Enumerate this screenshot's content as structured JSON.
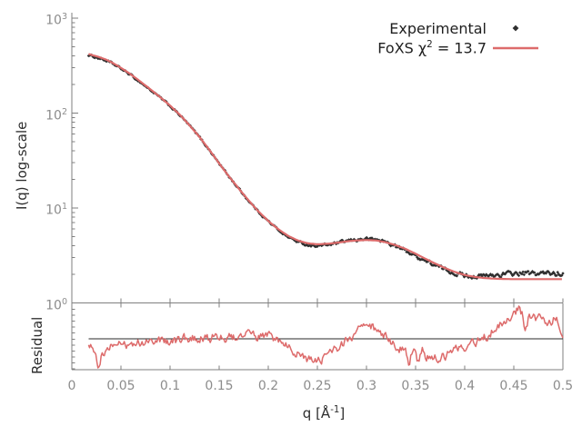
{
  "legend": {
    "experimental_label": "Experimental",
    "fit_label_prefix": "FoXS χ",
    "fit_label_sup": "2",
    "fit_label_suffix": " = 13.7"
  },
  "axes": {
    "y_main_label": "I(q) log-scale",
    "y_res_label": "Residual",
    "x_label_prefix": "q [Å",
    "x_label_sup": "-1",
    "x_label_suffix": "]"
  },
  "colors": {
    "background": "#ffffff",
    "fit_line": "#dd6b6b",
    "experimental": "#2f2f2f",
    "axis": "#7f7f7f",
    "tick_label": "#8c8c8c",
    "label_text": "#2e2e2e",
    "reference_line": "#2a2a2a"
  },
  "chart_data": {
    "type": "line",
    "title": "",
    "x": {
      "label": "q [Å^-1]",
      "min": 0,
      "max": 0.5,
      "tick_step": 0.05,
      "data_min": 0.017
    },
    "y_main": {
      "label": "I(q) log-scale",
      "scale": "log10",
      "min": 1,
      "max": 1000
    },
    "y_residual": {
      "label": "Residual",
      "scale": "log10",
      "reference_value": 1
    },
    "legend_position": "top-right",
    "grid": false,
    "series": [
      {
        "name": "Experimental",
        "style": "points",
        "marker": "diamond",
        "color": "#2f2f2f"
      },
      {
        "name": "FoXS χ2 = 13.7",
        "style": "line",
        "color": "#dd6b6b",
        "chi2": 13.7
      }
    ],
    "x_ticks": [
      {
        "value": 0,
        "label": "0"
      },
      {
        "value": 0.05,
        "label": "0.05"
      },
      {
        "value": 0.1,
        "label": "0.1"
      },
      {
        "value": 0.15,
        "label": "0.15"
      },
      {
        "value": 0.2,
        "label": "0.2"
      },
      {
        "value": 0.25,
        "label": "0.25"
      },
      {
        "value": 0.3,
        "label": "0.3"
      },
      {
        "value": 0.35,
        "label": "0.35"
      },
      {
        "value": 0.4,
        "label": "0.4"
      },
      {
        "value": 0.45,
        "label": "0.45"
      },
      {
        "value": 0.5,
        "label": "0.5"
      }
    ],
    "y_ticks": [
      {
        "base": "10",
        "exponent": 0,
        "label": "10^0"
      },
      {
        "base": "10",
        "exponent": 1,
        "label": "10^1"
      },
      {
        "base": "10",
        "exponent": 2,
        "label": "10^2"
      },
      {
        "base": "10",
        "exponent": 3,
        "label": "10^3"
      }
    ],
    "fit_curve_points": [
      [
        0.017,
        420
      ],
      [
        0.02,
        410
      ],
      [
        0.025,
        397
      ],
      [
        0.03,
        382
      ],
      [
        0.035,
        365
      ],
      [
        0.04,
        345
      ],
      [
        0.045,
        322
      ],
      [
        0.05,
        300
      ],
      [
        0.06,
        256
      ],
      [
        0.07,
        214
      ],
      [
        0.08,
        178
      ],
      [
        0.09,
        147
      ],
      [
        0.1,
        120
      ],
      [
        0.11,
        96
      ],
      [
        0.12,
        74
      ],
      [
        0.13,
        56
      ],
      [
        0.14,
        41
      ],
      [
        0.15,
        29.5
      ],
      [
        0.16,
        21.5
      ],
      [
        0.17,
        16
      ],
      [
        0.18,
        12
      ],
      [
        0.19,
        9.2
      ],
      [
        0.2,
        7.3
      ],
      [
        0.21,
        6
      ],
      [
        0.22,
        5.1
      ],
      [
        0.23,
        4.55
      ],
      [
        0.24,
        4.25
      ],
      [
        0.25,
        4.15
      ],
      [
        0.26,
        4.2
      ],
      [
        0.27,
        4.3
      ],
      [
        0.28,
        4.45
      ],
      [
        0.29,
        4.55
      ],
      [
        0.3,
        4.6
      ],
      [
        0.31,
        4.55
      ],
      [
        0.32,
        4.35
      ],
      [
        0.33,
        4.05
      ],
      [
        0.34,
        3.7
      ],
      [
        0.35,
        3.3
      ],
      [
        0.36,
        2.92
      ],
      [
        0.37,
        2.6
      ],
      [
        0.38,
        2.33
      ],
      [
        0.39,
        2.12
      ],
      [
        0.4,
        1.97
      ],
      [
        0.41,
        1.88
      ],
      [
        0.42,
        1.83
      ],
      [
        0.43,
        1.8
      ],
      [
        0.44,
        1.79
      ],
      [
        0.45,
        1.78
      ],
      [
        0.46,
        1.78
      ],
      [
        0.47,
        1.78
      ],
      [
        0.48,
        1.78
      ],
      [
        0.49,
        1.78
      ],
      [
        0.5,
        1.78
      ]
    ],
    "residual_curve_points": [
      [
        0.017,
        0.92
      ],
      [
        0.02,
        0.87
      ],
      [
        0.024,
        0.8
      ],
      [
        0.027,
        0.55
      ],
      [
        0.03,
        0.72
      ],
      [
        0.035,
        0.79
      ],
      [
        0.04,
        0.84
      ],
      [
        0.05,
        0.87
      ],
      [
        0.06,
        0.9
      ],
      [
        0.07,
        0.92
      ],
      [
        0.08,
        0.94
      ],
      [
        0.09,
        0.96
      ],
      [
        0.1,
        0.97
      ],
      [
        0.11,
        0.98
      ],
      [
        0.12,
        1.0
      ],
      [
        0.13,
        1.02
      ],
      [
        0.14,
        1.03
      ],
      [
        0.15,
        1.04
      ],
      [
        0.16,
        1.05
      ],
      [
        0.17,
        1.06
      ],
      [
        0.18,
        1.05
      ],
      [
        0.19,
        1.04
      ],
      [
        0.2,
        1.02
      ],
      [
        0.21,
        0.96
      ],
      [
        0.22,
        0.88
      ],
      [
        0.225,
        0.8
      ],
      [
        0.23,
        0.75
      ],
      [
        0.24,
        0.64
      ],
      [
        0.25,
        0.62
      ],
      [
        0.26,
        0.67
      ],
      [
        0.27,
        0.79
      ],
      [
        0.28,
        0.94
      ],
      [
        0.29,
        1.15
      ],
      [
        0.3,
        1.27
      ],
      [
        0.305,
        1.32
      ],
      [
        0.31,
        1.22
      ],
      [
        0.32,
        1.02
      ],
      [
        0.33,
        0.87
      ],
      [
        0.34,
        0.76
      ],
      [
        0.344,
        0.57
      ],
      [
        0.347,
        0.8
      ],
      [
        0.35,
        0.73
      ],
      [
        0.353,
        0.56
      ],
      [
        0.357,
        0.75
      ],
      [
        0.36,
        0.68
      ],
      [
        0.37,
        0.66
      ],
      [
        0.38,
        0.71
      ],
      [
        0.39,
        0.77
      ],
      [
        0.4,
        0.82
      ],
      [
        0.41,
        0.89
      ],
      [
        0.42,
        1.02
      ],
      [
        0.43,
        1.22
      ],
      [
        0.44,
        1.52
      ],
      [
        0.45,
        1.82
      ],
      [
        0.455,
        1.98
      ],
      [
        0.458,
        1.8
      ],
      [
        0.462,
        1.11
      ],
      [
        0.465,
        1.52
      ],
      [
        0.47,
        1.65
      ],
      [
        0.475,
        1.52
      ],
      [
        0.48,
        1.58
      ],
      [
        0.485,
        1.49
      ],
      [
        0.49,
        1.55
      ],
      [
        0.495,
        1.43
      ],
      [
        0.5,
        1.04
      ]
    ],
    "experimental_offset_log10": [
      [
        0.017,
        -0.012
      ],
      [
        0.05,
        -0.008
      ],
      [
        0.1,
        -0.005
      ],
      [
        0.15,
        0
      ],
      [
        0.2,
        -0.003
      ],
      [
        0.22,
        -0.01
      ],
      [
        0.24,
        -0.018
      ],
      [
        0.26,
        -0.012
      ],
      [
        0.28,
        0.003
      ],
      [
        0.3,
        0.012
      ],
      [
        0.315,
        0.008
      ],
      [
        0.33,
        -0.012
      ],
      [
        0.35,
        -0.022
      ],
      [
        0.37,
        -0.02
      ],
      [
        0.39,
        -0.012
      ],
      [
        0.41,
        0.005
      ],
      [
        0.42,
        0.02
      ],
      [
        0.43,
        0.035
      ],
      [
        0.44,
        0.05
      ],
      [
        0.45,
        0.058
      ],
      [
        0.46,
        0.06
      ],
      [
        0.47,
        0.058
      ],
      [
        0.48,
        0.06
      ],
      [
        0.49,
        0.062
      ],
      [
        0.5,
        0.06
      ]
    ],
    "noise": {
      "seed": 1234,
      "experimental_amp_log10": 0.009,
      "residual_amp_log10": 0.04
    }
  }
}
